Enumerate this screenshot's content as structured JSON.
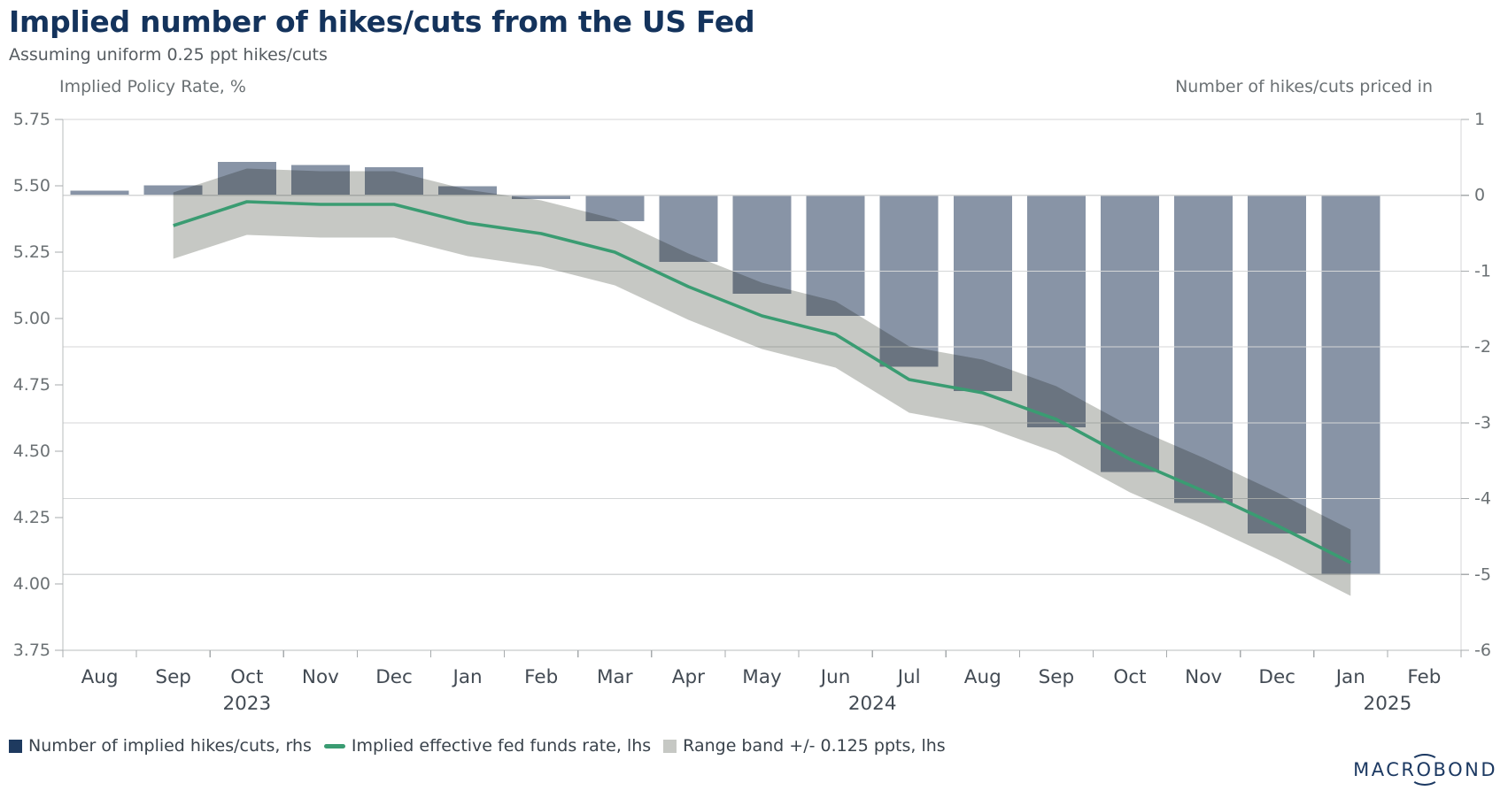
{
  "header": {
    "title": "Implied number of hikes/cuts from the US Fed",
    "subtitle": "Assuming uniform 0.25 ppt hikes/cuts"
  },
  "axes": {
    "left_title": "Implied Policy Rate, %",
    "right_title": "Number of hikes/cuts priced in",
    "left_tick_labels": [
      "5.75",
      "5.50",
      "5.25",
      "5.00",
      "4.75",
      "4.50",
      "4.25",
      "4.00",
      "3.75"
    ],
    "right_tick_labels": [
      "1",
      "0",
      "-1",
      "-2",
      "-3",
      "-4",
      "-5",
      "-6"
    ]
  },
  "chart_data": {
    "type": "bar",
    "categories": [
      "Aug 2023",
      "Sep 2023",
      "Oct 2023",
      "Nov 2023",
      "Dec 2023",
      "Jan 2024",
      "Feb 2024",
      "Mar 2024",
      "Apr 2024",
      "May 2024",
      "Jun 2024",
      "Jul 2024",
      "Aug 2024",
      "Sep 2024",
      "Oct 2024",
      "Nov 2024",
      "Dec 2024",
      "Jan 2025",
      "Feb 2025"
    ],
    "month_labels": [
      "Aug",
      "Sep",
      "Oct",
      "Nov",
      "Dec",
      "Jan",
      "Feb",
      "Mar",
      "Apr",
      "May",
      "Jun",
      "Jul",
      "Aug",
      "Sep",
      "Oct",
      "Nov",
      "Dec",
      "Jan",
      "Feb"
    ],
    "year_labels": [
      {
        "label": "2023",
        "index": 2
      },
      {
        "label": "2024",
        "index": 10.5
      },
      {
        "label": "2025",
        "index": 17.5
      }
    ],
    "series": [
      {
        "name": "Number of implied hikes/cuts, rhs",
        "type": "bar",
        "axis": "right",
        "values": [
          0.06,
          0.13,
          0.44,
          0.4,
          0.37,
          0.12,
          -0.05,
          -0.34,
          -0.88,
          -1.3,
          -1.59,
          -2.26,
          -2.58,
          -3.06,
          -3.65,
          -4.06,
          -4.46,
          -4.99,
          null
        ]
      },
      {
        "name": "Implied effective fed funds rate, lhs",
        "type": "line",
        "axis": "left",
        "values": [
          null,
          5.35,
          5.44,
          5.43,
          5.43,
          5.36,
          5.32,
          5.25,
          5.12,
          5.01,
          4.94,
          4.77,
          4.72,
          4.62,
          4.47,
          4.35,
          4.22,
          4.08,
          null
        ]
      },
      {
        "name": "Range band +/- 0.125 ppts, lhs",
        "type": "band",
        "axis": "left",
        "half_width": 0.125
      }
    ],
    "left_axis": {
      "min": 3.75,
      "max": 5.75,
      "step": 0.25
    },
    "right_axis": {
      "min": -6,
      "max": 1,
      "step": 1
    },
    "gridlines_at_right_values": [
      1,
      0,
      -1,
      -2,
      -3,
      -4,
      -5
    ],
    "legend_position": "bottom-left",
    "grid": true
  },
  "legend": {
    "items": [
      {
        "label": "Number of implied hikes/cuts, rhs",
        "swatch": "bar-square"
      },
      {
        "label": "Implied effective fed funds rate, lhs",
        "swatch": "line-dash"
      },
      {
        "label": "Range band +/- 0.125 ppts, lhs",
        "swatch": "band-square"
      }
    ]
  },
  "logo": {
    "text": "MACROBOND"
  },
  "colors": {
    "title": "#14335c",
    "subtitle": "#565c61",
    "axis_text": "#6b7174",
    "month_text": "#434b54",
    "bar": "#8894a6",
    "band": "#c6c8c4",
    "line": "#3a9c72",
    "legend_bar_swatch": "#1e3a5f",
    "legend_text": "#3a434c",
    "gridline": "#d4d6d7",
    "axis_line": "#b9bcbe",
    "tick_mark": "#a7abad",
    "logo": "#1c3962"
  }
}
